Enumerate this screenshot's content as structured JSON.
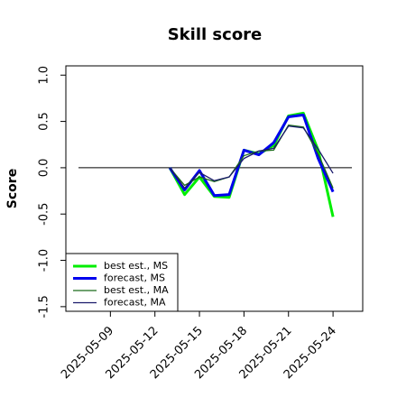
{
  "chart_data": {
    "type": "line",
    "title": "Skill score",
    "y_label": "Score",
    "x": [
      "2025-05-13",
      "2025-05-14",
      "2025-05-15",
      "2025-05-16",
      "2025-05-17",
      "2025-05-18",
      "2025-05-19",
      "2025-05-20",
      "2025-05-21",
      "2025-05-22",
      "2025-05-23",
      "2025-05-24"
    ],
    "series": [
      {
        "name": "best est., MS",
        "color": "#00ee00",
        "width": 3,
        "values": [
          0.0,
          -0.29,
          -0.1,
          -0.31,
          -0.32,
          0.19,
          0.15,
          0.24,
          0.56,
          0.59,
          0.19,
          -0.53
        ]
      },
      {
        "name": "forecast, MS",
        "color": "#0000ee",
        "width": 3,
        "values": [
          0.0,
          -0.24,
          -0.03,
          -0.3,
          -0.29,
          0.19,
          0.14,
          0.27,
          0.55,
          0.57,
          0.1,
          -0.26
        ]
      },
      {
        "name": "best est., MA",
        "color": "#1a6b1a",
        "width": 1.3,
        "values": [
          0.0,
          -0.19,
          -0.1,
          -0.15,
          -0.1,
          0.13,
          0.18,
          0.19,
          0.46,
          0.44,
          0.15,
          -0.22
        ]
      },
      {
        "name": "forecast, MA",
        "color": "#1a1a6b",
        "width": 1.3,
        "values": [
          0.0,
          -0.22,
          -0.05,
          -0.14,
          -0.1,
          0.1,
          0.18,
          0.21,
          0.45,
          0.43,
          0.2,
          -0.06
        ]
      }
    ],
    "xlim": [
      "2025-05-06",
      "2025-05-26"
    ],
    "xticks": [
      "2025-05-09",
      "2025-05-12",
      "2025-05-15",
      "2025-05-18",
      "2025-05-21",
      "2025-05-24"
    ],
    "xtick_colors": [
      "#000000",
      "#000000",
      "#2e8b2e",
      "#000000",
      "#000000",
      "#000000"
    ],
    "ylim": [
      -1.55,
      1.1
    ],
    "yticks": [
      {
        "value": 1,
        "label": "1.0"
      },
      0.5,
      {
        "value": 0,
        "label": "0.0"
      },
      -0.5,
      {
        "value": -1,
        "label": "-1.0"
      },
      -1.5
    ],
    "hline": 0,
    "legend": "bottom-left"
  }
}
